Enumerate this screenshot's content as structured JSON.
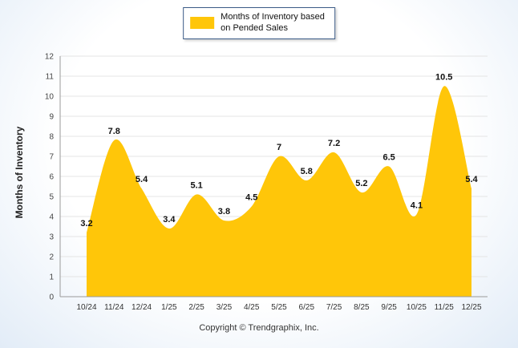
{
  "legend": {
    "line1": "Months of Inventory based",
    "line2": "on Pended Sales",
    "swatch_color": "#FFC609"
  },
  "footer": {
    "copyright": "Copyright © Trendgraphix, Inc."
  },
  "chart_data": {
    "type": "area",
    "title": "",
    "xlabel": "",
    "ylabel": "Months of Inventory",
    "legend_entries": [
      "Months of Inventory based on Pended Sales"
    ],
    "legend_position": "top-center",
    "grid": true,
    "ylim": [
      0,
      12
    ],
    "ytick_step": 1,
    "series_color": "#FFC609",
    "categories": [
      "10/24",
      "11/24",
      "12/24",
      "1/25",
      "2/25",
      "3/25",
      "4/25",
      "5/25",
      "6/25",
      "7/25",
      "8/25",
      "9/25",
      "10/25",
      "11/25",
      "12/25"
    ],
    "values": [
      3.2,
      7.8,
      5.4,
      3.4,
      5.1,
      3.8,
      4.5,
      7,
      5.8,
      7.2,
      5.2,
      6.5,
      4.1,
      10.5,
      5.4
    ],
    "point_labels": [
      "3.2",
      "7.8",
      "5.4",
      "3.4",
      "5.1",
      "3.8",
      "4.5",
      "7",
      "5.8",
      "7.2",
      "5.2",
      "6.5",
      "4.1",
      "10.5",
      "5.4"
    ]
  }
}
